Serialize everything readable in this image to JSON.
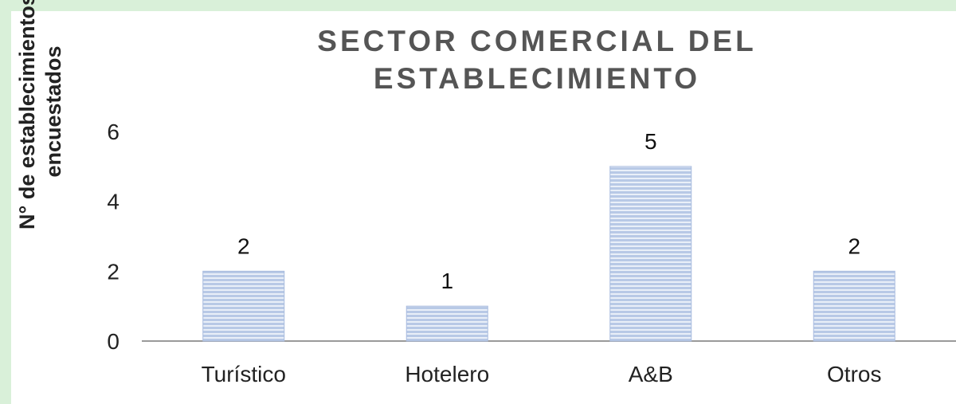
{
  "chart_data": {
    "type": "bar",
    "title_lines": [
      "SECTOR COMERCIAL DEL",
      "ESTABLECIMIENTO"
    ],
    "ylabel_lines": [
      "N° de establecimientos",
      "encuestados"
    ],
    "xlabel": "",
    "categories": [
      "Turístico",
      "Hotelero",
      "A&B",
      "Otros"
    ],
    "values": [
      2,
      1,
      5,
      2
    ],
    "data_labels": [
      "2",
      "1",
      "5",
      "2"
    ],
    "y_ticks": [
      0,
      2,
      4,
      6
    ],
    "ylim": [
      0,
      6
    ],
    "grid": false,
    "legend": "none",
    "bar_color": "#b8c9e6",
    "bar_stripe_color": "#e9eff8"
  }
}
